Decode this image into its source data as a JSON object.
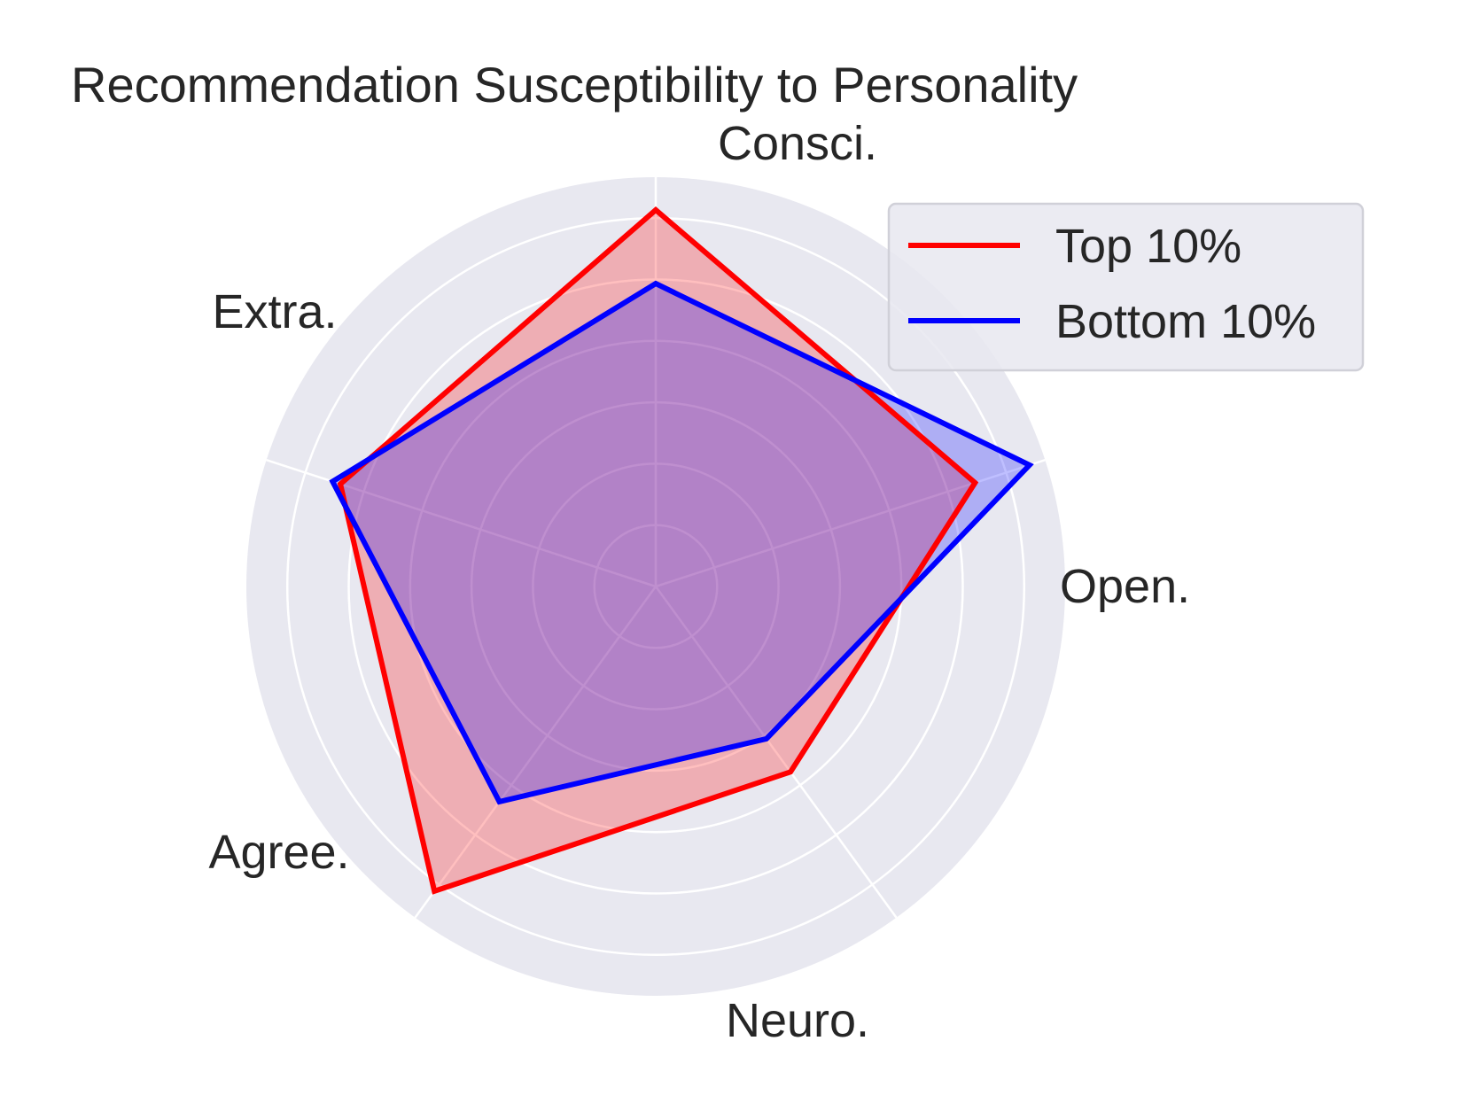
{
  "chart_data": {
    "type": "radar",
    "title": "Recommendation Susceptibility to Personality",
    "categories": [
      "Open.",
      "Consci.",
      "Extra.",
      "Agree.",
      "Neuro."
    ],
    "rlim": [
      0,
      1
    ],
    "rings": [
      0.15,
      0.3,
      0.45,
      0.6,
      0.75,
      0.9
    ],
    "grid": true,
    "legend_position": "top-right",
    "series": [
      {
        "name": "Top 10%",
        "color": "#ff0000",
        "values": [
          0.82,
          0.92,
          0.81,
          0.92,
          0.56
        ]
      },
      {
        "name": "Bottom 10%",
        "color": "#0000ff",
        "values": [
          0.96,
          0.74,
          0.83,
          0.65,
          0.46
        ]
      }
    ],
    "colors": {
      "background": "#e8e8f0",
      "grid": "#ffffff"
    }
  }
}
